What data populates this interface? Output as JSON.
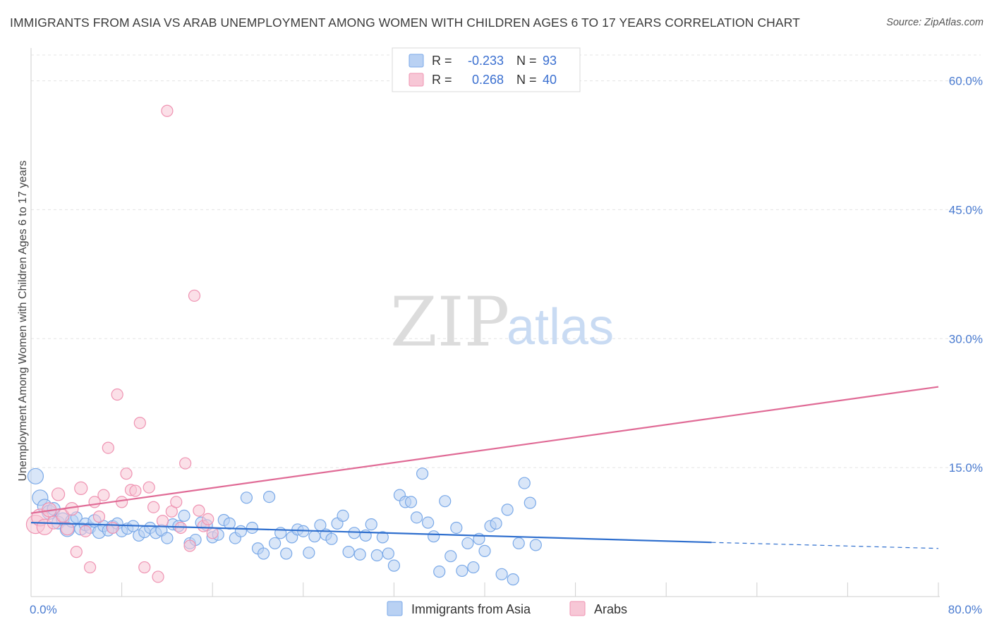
{
  "header": {
    "title": "IMMIGRANTS FROM ASIA VS ARAB UNEMPLOYMENT AMONG WOMEN WITH CHILDREN AGES 6 TO 17 YEARS CORRELATION CHART",
    "source": "Source: ZipAtlas.com"
  },
  "watermark": {
    "zip": "ZIP",
    "atlas": "atlas"
  },
  "chart_data": {
    "type": "scatter",
    "title": "IMMIGRANTS FROM ASIA VS ARAB UNEMPLOYMENT AMONG WOMEN WITH CHILDREN AGES 6 TO 17 YEARS CORRELATION CHART",
    "xlabel": "",
    "ylabel": "Unemployment Among Women with Children Ages 6 to 17 years",
    "xlim": [
      0,
      80
    ],
    "ylim": [
      0,
      63
    ],
    "x_tick_labels": {
      "min": "0.0%",
      "max": "80.0%"
    },
    "x_minor_ticks": [
      0,
      8,
      16,
      24,
      32,
      40,
      48,
      56,
      64,
      72,
      80
    ],
    "y_ticks": [
      {
        "value": 15,
        "label": "15.0%"
      },
      {
        "value": 30,
        "label": "30.0%"
      },
      {
        "value": 45,
        "label": "45.0%"
      },
      {
        "value": 60,
        "label": "60.0%"
      }
    ],
    "grid": true,
    "legend_position": "top-center",
    "legend": [
      {
        "name": "Immigrants from Asia",
        "r_label": "R =",
        "r": "-0.233",
        "n_label": "N =",
        "n": "93",
        "color": "#7aa9e8",
        "fill": "#b9d1f3"
      },
      {
        "name": "Arabs",
        "r_label": "R =",
        "r": "0.268",
        "n_label": "N =",
        "n": "40",
        "color": "#ef93b2",
        "fill": "#f7c7d6"
      }
    ],
    "series": [
      {
        "name": "Immigrants from Asia",
        "color": "#7aa9e8",
        "fill": "#b9d1f3",
        "trend": {
          "x": [
            0,
            60
          ],
          "y": [
            8.6,
            6.3
          ],
          "dashed_to": [
            80,
            5.6
          ],
          "color": "#2f6fce"
        },
        "points": [
          [
            0.4,
            14.0,
            11
          ],
          [
            0.8,
            11.5,
            11
          ],
          [
            1.2,
            10.5,
            10
          ],
          [
            1.6,
            9.8,
            10
          ],
          [
            2.0,
            10.2,
            9
          ],
          [
            2.4,
            8.6,
            9
          ],
          [
            2.8,
            9.0,
            9
          ],
          [
            3.2,
            7.8,
            10
          ],
          [
            3.6,
            8.8,
            9
          ],
          [
            4.0,
            9.2,
            8
          ],
          [
            4.4,
            7.9,
            9
          ],
          [
            4.8,
            8.4,
            9
          ],
          [
            5.2,
            8.0,
            8
          ],
          [
            5.6,
            8.8,
            9
          ],
          [
            6.0,
            7.5,
            9
          ],
          [
            6.4,
            8.2,
            8
          ],
          [
            6.8,
            7.7,
            8
          ],
          [
            7.2,
            8.1,
            9
          ],
          [
            7.6,
            8.5,
            8
          ],
          [
            8.0,
            7.6,
            8
          ],
          [
            8.5,
            7.9,
            8
          ],
          [
            9.0,
            8.2,
            8
          ],
          [
            9.5,
            7.1,
            8
          ],
          [
            10.0,
            7.5,
            8
          ],
          [
            10.5,
            8.0,
            8
          ],
          [
            11.0,
            7.4,
            8
          ],
          [
            11.5,
            7.7,
            8
          ],
          [
            12.0,
            6.8,
            8
          ],
          [
            12.5,
            8.4,
            8
          ],
          [
            13.0,
            8.2,
            8
          ],
          [
            13.5,
            9.4,
            8
          ],
          [
            14.0,
            6.2,
            8
          ],
          [
            14.5,
            6.6,
            8
          ],
          [
            15.0,
            8.6,
            8
          ],
          [
            15.5,
            8.3,
            8
          ],
          [
            16.0,
            6.9,
            8
          ],
          [
            16.5,
            7.2,
            8
          ],
          [
            17.0,
            8.9,
            8
          ],
          [
            17.5,
            8.5,
            8
          ],
          [
            18.0,
            6.8,
            8
          ],
          [
            18.5,
            7.6,
            8
          ],
          [
            19.0,
            11.5,
            8
          ],
          [
            19.5,
            8.0,
            8
          ],
          [
            20.0,
            5.6,
            8
          ],
          [
            20.5,
            5.0,
            8
          ],
          [
            21.0,
            11.6,
            8
          ],
          [
            21.5,
            6.2,
            8
          ],
          [
            22.0,
            7.4,
            8
          ],
          [
            22.5,
            5.0,
            8
          ],
          [
            23.0,
            6.9,
            8
          ],
          [
            23.5,
            7.8,
            8
          ],
          [
            24.0,
            7.6,
            8
          ],
          [
            24.5,
            5.1,
            8
          ],
          [
            25.0,
            7.0,
            8
          ],
          [
            25.5,
            8.3,
            8
          ],
          [
            26.0,
            7.2,
            8
          ],
          [
            26.5,
            6.7,
            8
          ],
          [
            27.0,
            8.5,
            8
          ],
          [
            27.5,
            9.4,
            8
          ],
          [
            28.0,
            5.2,
            8
          ],
          [
            28.5,
            7.4,
            8
          ],
          [
            29.0,
            4.9,
            8
          ],
          [
            29.5,
            7.1,
            8
          ],
          [
            30.0,
            8.4,
            8
          ],
          [
            30.5,
            4.8,
            8
          ],
          [
            31.0,
            6.9,
            8
          ],
          [
            31.5,
            5.0,
            8
          ],
          [
            32.0,
            3.6,
            8
          ],
          [
            32.5,
            11.8,
            8
          ],
          [
            33.0,
            11.0,
            8
          ],
          [
            33.5,
            11.0,
            8
          ],
          [
            34.0,
            9.2,
            8
          ],
          [
            34.5,
            14.3,
            8
          ],
          [
            35.0,
            8.6,
            8
          ],
          [
            35.5,
            7.0,
            8
          ],
          [
            36.0,
            2.9,
            8
          ],
          [
            36.5,
            11.1,
            8
          ],
          [
            37.0,
            4.7,
            8
          ],
          [
            37.5,
            8.0,
            8
          ],
          [
            38.0,
            3.0,
            8
          ],
          [
            38.5,
            6.2,
            8
          ],
          [
            39.0,
            3.4,
            8
          ],
          [
            39.5,
            6.7,
            8
          ],
          [
            40.0,
            5.3,
            8
          ],
          [
            40.5,
            8.2,
            8
          ],
          [
            41.0,
            8.5,
            8
          ],
          [
            41.5,
            2.6,
            8
          ],
          [
            42.0,
            10.1,
            8
          ],
          [
            42.5,
            2.0,
            8
          ],
          [
            43.0,
            6.2,
            8
          ],
          [
            43.5,
            13.2,
            8
          ],
          [
            44.0,
            10.9,
            8
          ],
          [
            44.5,
            6.0,
            8
          ]
        ]
      },
      {
        "name": "Arabs",
        "color": "#ef93b2",
        "fill": "#f7c7d6",
        "trend": {
          "x": [
            0,
            80
          ],
          "y": [
            9.7,
            24.4
          ],
          "color": "#e06b96"
        },
        "points": [
          [
            0.4,
            8.4,
            13
          ],
          [
            0.8,
            9.2,
            12
          ],
          [
            1.2,
            8.1,
            11
          ],
          [
            1.6,
            10.1,
            10
          ],
          [
            2.0,
            8.6,
            9
          ],
          [
            2.4,
            11.9,
            9
          ],
          [
            2.8,
            9.4,
            9
          ],
          [
            3.2,
            7.9,
            9
          ],
          [
            3.6,
            10.2,
            9
          ],
          [
            4.0,
            5.2,
            8
          ],
          [
            4.4,
            12.6,
            9
          ],
          [
            4.8,
            7.6,
            8
          ],
          [
            5.2,
            3.4,
            8
          ],
          [
            5.6,
            11.0,
            8
          ],
          [
            6.0,
            9.3,
            8
          ],
          [
            6.4,
            11.8,
            8
          ],
          [
            6.8,
            17.3,
            8
          ],
          [
            7.2,
            8.0,
            8
          ],
          [
            7.6,
            23.5,
            8
          ],
          [
            8.0,
            11.0,
            8
          ],
          [
            8.4,
            14.3,
            8
          ],
          [
            8.8,
            12.4,
            8
          ],
          [
            9.2,
            12.3,
            8
          ],
          [
            9.6,
            20.2,
            8
          ],
          [
            10.0,
            3.4,
            8
          ],
          [
            10.4,
            12.7,
            8
          ],
          [
            10.8,
            10.4,
            8
          ],
          [
            11.2,
            2.3,
            8
          ],
          [
            11.6,
            8.8,
            8
          ],
          [
            12.0,
            56.5,
            8
          ],
          [
            12.4,
            9.9,
            8
          ],
          [
            12.8,
            11.0,
            8
          ],
          [
            13.2,
            8.0,
            8
          ],
          [
            13.6,
            15.5,
            8
          ],
          [
            14.0,
            5.9,
            8
          ],
          [
            14.4,
            35.0,
            8
          ],
          [
            14.8,
            10.0,
            8
          ],
          [
            15.2,
            8.2,
            8
          ],
          [
            15.6,
            9.0,
            8
          ],
          [
            16.0,
            7.4,
            8
          ]
        ]
      }
    ]
  }
}
